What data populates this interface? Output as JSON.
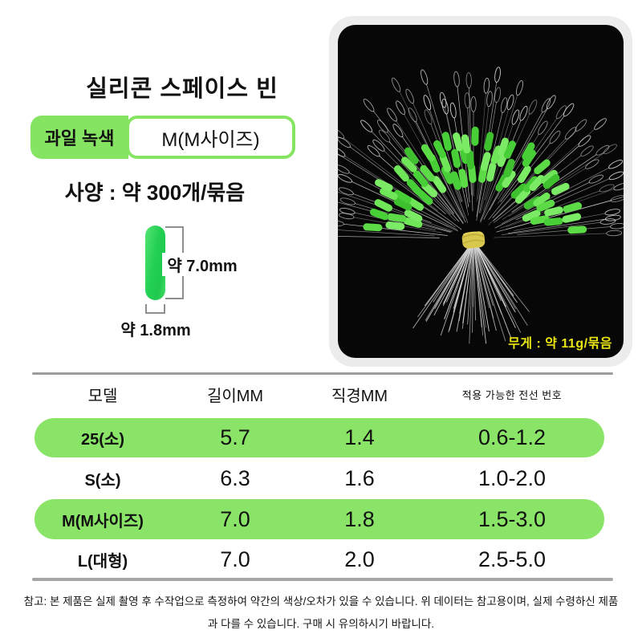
{
  "product": {
    "title": "실리콘 스페이스 빈",
    "variant": {
      "color_label": "과일 녹색",
      "size_label": "M(M사이즈)"
    },
    "spec_line": "사양 : 약 300개/묶음",
    "dimensions": {
      "length": "약 7.0mm",
      "diameter": "약 1.8mm"
    },
    "photo": {
      "weight_label": "무게 : 약 11g/묶음"
    }
  },
  "spec_table": {
    "headers": [
      "모델",
      "길이MM",
      "직경MM",
      "적용 가능한 전선 번호"
    ],
    "rows": [
      {
        "model": "25(소)",
        "length": "5.7",
        "diameter": "1.4",
        "wire": "0.6-1.2",
        "highlight": true
      },
      {
        "model": "S(소)",
        "length": "6.3",
        "diameter": "1.6",
        "wire": "1.0-2.0",
        "highlight": false
      },
      {
        "model": "M(M사이즈)",
        "length": "7.0",
        "diameter": "1.8",
        "wire": "1.5-3.0",
        "highlight": true
      },
      {
        "model": "L(대형)",
        "length": "7.0",
        "diameter": "2.0",
        "wire": "2.5-5.0",
        "highlight": false
      }
    ]
  },
  "footer": {
    "note_line1": "참고: 본 제품은 실제 촬영 후 수작업으로 측정하여 약간의 색상/오차가 있을 수 있습니다. 위 데이터는 참고용이며, 실제 수령하신 제품",
    "note_line2": "과 다를 수 있습니다. 구매 시 유의하시기 바랍니다."
  },
  "colors": {
    "accent_green": "#86e463",
    "row_green": "#8ae467",
    "capsule_green": "#24d054",
    "weight_yellow": "#e9e513",
    "card_gray": "#ececec",
    "photo_bg": "#070707",
    "bead_greens": [
      "#48ce36",
      "#5cdb47",
      "#6ee658",
      "#3ec02f",
      "#7bea64"
    ],
    "wire_silver": "#d9d9d9",
    "band_yellow": "#d8c74d"
  }
}
